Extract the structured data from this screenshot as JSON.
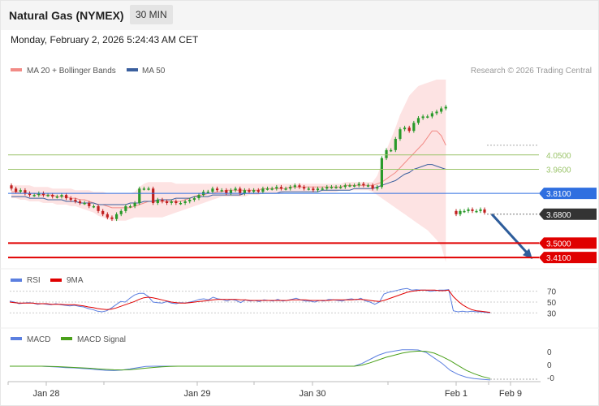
{
  "header": {
    "title": "Natural Gas (NYMEX)",
    "timeframe": "30 MIN"
  },
  "timestamp": "Monday, February 2, 2026 5:24:43 AM CET",
  "legend": {
    "ma20": "MA 20 + Bollinger Bands",
    "ma50": "MA 50",
    "credit": "Research © 2026 Trading Central"
  },
  "colors": {
    "ma20": "#f28b86",
    "ma50": "#3a5f9e",
    "resistance": "#9bc46a",
    "pivot": "#2f6fe0",
    "support": "#e00000",
    "arrow": "#2e5d9b",
    "bull": "#2a9a2a",
    "bear": "#c02020",
    "rsi": "#5b7fe0",
    "signal": "#e00000",
    "macd_signal": "#4aa01a"
  },
  "chart_data": [
    {
      "type": "candlestick",
      "panel": "price",
      "x_tick_labels": [
        "Jan 28",
        "Jan 29",
        "Jan 30",
        "Feb 1",
        "Feb 9"
      ],
      "levels": [
        {
          "label": "4.0500",
          "value": 4.05,
          "kind": "resistance"
        },
        {
          "label": "3.9600",
          "value": 3.96,
          "kind": "resistance"
        },
        {
          "label": "3.8100",
          "value": 3.81,
          "kind": "pivot"
        },
        {
          "label": "3.6800",
          "value": 3.68,
          "kind": "last"
        },
        {
          "label": "3.5000",
          "value": 3.5,
          "kind": "support"
        },
        {
          "label": "3.4100",
          "value": 3.41,
          "kind": "support"
        }
      ],
      "ylim": [
        3.37,
        4.52
      ],
      "close": [
        3.84,
        3.82,
        3.83,
        3.81,
        3.8,
        3.8,
        3.81,
        3.8,
        3.8,
        3.79,
        3.79,
        3.8,
        3.78,
        3.77,
        3.76,
        3.75,
        3.75,
        3.73,
        3.73,
        3.7,
        3.68,
        3.66,
        3.65,
        3.68,
        3.7,
        3.73,
        3.73,
        3.75,
        3.84,
        3.84,
        3.84,
        3.75,
        3.77,
        3.76,
        3.75,
        3.76,
        3.75,
        3.75,
        3.76,
        3.77,
        3.78,
        3.8,
        3.82,
        3.82,
        3.84,
        3.83,
        3.83,
        3.81,
        3.83,
        3.84,
        3.81,
        3.83,
        3.82,
        3.83,
        3.82,
        3.84,
        3.84,
        3.84,
        3.85,
        3.84,
        3.84,
        3.85,
        3.86,
        3.85,
        3.84,
        3.84,
        3.83,
        3.84,
        3.84,
        3.85,
        3.85,
        3.85,
        3.85,
        3.86,
        3.86,
        3.86,
        3.87,
        3.86,
        3.86,
        3.84,
        3.85,
        4.03,
        4.08,
        4.08,
        4.15,
        4.21,
        4.22,
        4.2,
        4.25,
        4.28,
        4.29,
        4.29,
        4.31,
        4.32,
        4.34,
        4.35
      ],
      "ma20": [
        3.82,
        3.82,
        3.81,
        3.81,
        3.81,
        3.81,
        3.8,
        3.8,
        3.8,
        3.8,
        3.79,
        3.79,
        3.79,
        3.78,
        3.78,
        3.77,
        3.77,
        3.76,
        3.75,
        3.74,
        3.74,
        3.73,
        3.72,
        3.72,
        3.72,
        3.72,
        3.72,
        3.73,
        3.74,
        3.75,
        3.76,
        3.76,
        3.76,
        3.76,
        3.76,
        3.76,
        3.76,
        3.76,
        3.77,
        3.78,
        3.79,
        3.8,
        3.8,
        3.81,
        3.81,
        3.82,
        3.82,
        3.83,
        3.83,
        3.83,
        3.83,
        3.83,
        3.83,
        3.83,
        3.83,
        3.84,
        3.84,
        3.84,
        3.84,
        3.84,
        3.84,
        3.85,
        3.85,
        3.85,
        3.85,
        3.85,
        3.85,
        3.85,
        3.85,
        3.85,
        3.85,
        3.85,
        3.85,
        3.86,
        3.86,
        3.86,
        3.86,
        3.86,
        3.86,
        3.86,
        3.87,
        3.88,
        3.9,
        3.92,
        3.94,
        3.97,
        4.0,
        4.03,
        4.06,
        4.09,
        4.12,
        4.16,
        4.2,
        4.2,
        4.17,
        4.11
      ],
      "bb_upper": [
        3.86,
        3.86,
        3.86,
        3.86,
        3.86,
        3.85,
        3.85,
        3.85,
        3.85,
        3.84,
        3.84,
        3.84,
        3.84,
        3.84,
        3.83,
        3.83,
        3.83,
        3.83,
        3.82,
        3.82,
        3.82,
        3.81,
        3.81,
        3.81,
        3.81,
        3.81,
        3.81,
        3.82,
        3.85,
        3.87,
        3.88,
        3.88,
        3.88,
        3.88,
        3.88,
        3.88,
        3.87,
        3.87,
        3.87,
        3.87,
        3.87,
        3.87,
        3.87,
        3.87,
        3.87,
        3.87,
        3.87,
        3.87,
        3.87,
        3.87,
        3.87,
        3.87,
        3.87,
        3.87,
        3.87,
        3.87,
        3.87,
        3.87,
        3.87,
        3.87,
        3.87,
        3.87,
        3.87,
        3.87,
        3.87,
        3.87,
        3.87,
        3.87,
        3.87,
        3.87,
        3.87,
        3.87,
        3.87,
        3.88,
        3.88,
        3.88,
        3.88,
        3.88,
        3.88,
        3.88,
        3.92,
        4.0,
        4.08,
        4.15,
        4.22,
        4.3,
        4.36,
        4.42,
        4.45,
        4.48,
        4.49,
        4.5,
        4.51,
        4.52,
        4.52,
        4.52
      ],
      "bb_lower": [
        3.78,
        3.78,
        3.77,
        3.77,
        3.76,
        3.76,
        3.76,
        3.75,
        3.75,
        3.75,
        3.74,
        3.74,
        3.74,
        3.73,
        3.73,
        3.72,
        3.71,
        3.7,
        3.69,
        3.67,
        3.66,
        3.65,
        3.64,
        3.64,
        3.64,
        3.64,
        3.65,
        3.66,
        3.66,
        3.66,
        3.66,
        3.66,
        3.66,
        3.66,
        3.67,
        3.68,
        3.69,
        3.7,
        3.71,
        3.72,
        3.73,
        3.74,
        3.75,
        3.76,
        3.77,
        3.78,
        3.79,
        3.79,
        3.79,
        3.79,
        3.79,
        3.79,
        3.8,
        3.8,
        3.8,
        3.81,
        3.81,
        3.81,
        3.81,
        3.81,
        3.82,
        3.82,
        3.82,
        3.82,
        3.82,
        3.82,
        3.82,
        3.82,
        3.82,
        3.82,
        3.82,
        3.82,
        3.83,
        3.83,
        3.83,
        3.83,
        3.83,
        3.83,
        3.83,
        3.82,
        3.8,
        3.78,
        3.76,
        3.74,
        3.72,
        3.7,
        3.68,
        3.66,
        3.64,
        3.62,
        3.6,
        3.58,
        3.55,
        3.52,
        3.48,
        3.38
      ],
      "ma50": [
        3.79,
        3.79,
        3.79,
        3.79,
        3.78,
        3.78,
        3.78,
        3.78,
        3.77,
        3.77,
        3.77,
        3.77,
        3.76,
        3.76,
        3.76,
        3.75,
        3.75,
        3.75,
        3.75,
        3.74,
        3.74,
        3.74,
        3.74,
        3.74,
        3.74,
        3.74,
        3.75,
        3.75,
        3.75,
        3.76,
        3.76,
        3.76,
        3.77,
        3.77,
        3.77,
        3.77,
        3.78,
        3.78,
        3.78,
        3.78,
        3.79,
        3.79,
        3.79,
        3.79,
        3.8,
        3.8,
        3.8,
        3.8,
        3.8,
        3.8,
        3.8,
        3.81,
        3.81,
        3.81,
        3.81,
        3.81,
        3.81,
        3.81,
        3.81,
        3.82,
        3.82,
        3.82,
        3.82,
        3.82,
        3.82,
        3.82,
        3.82,
        3.82,
        3.83,
        3.83,
        3.83,
        3.83,
        3.83,
        3.83,
        3.83,
        3.84,
        3.84,
        3.84,
        3.84,
        3.84,
        3.85,
        3.86,
        3.87,
        3.88,
        3.89,
        3.91,
        3.93,
        3.94,
        3.96,
        3.97,
        3.98,
        3.99,
        3.99,
        3.98,
        3.97,
        3.96
      ],
      "gap_candles": [
        3.68,
        3.7,
        3.7,
        3.71,
        3.7,
        3.7,
        3.71,
        3.69
      ],
      "forecast": {
        "from": 3.68,
        "to": 3.4,
        "direction": "down"
      }
    },
    {
      "type": "line",
      "panel": "rsi",
      "legend": [
        "RSI",
        "9MA"
      ],
      "y_tick_labels": [
        "70",
        "50",
        "30"
      ],
      "ylim": [
        20,
        80
      ],
      "rsi": [
        52,
        50,
        47,
        48,
        49,
        48,
        46,
        47,
        46,
        45,
        47,
        45,
        44,
        43,
        44,
        42,
        41,
        38,
        36,
        33,
        32,
        34,
        39,
        45,
        51,
        50,
        57,
        63,
        66,
        66,
        60,
        50,
        49,
        48,
        51,
        48,
        47,
        49,
        48,
        50,
        52,
        55,
        56,
        54,
        59,
        56,
        55,
        52,
        55,
        53,
        49,
        54,
        52,
        53,
        51,
        54,
        53,
        52,
        55,
        52,
        53,
        55,
        57,
        54,
        52,
        52,
        50,
        53,
        52,
        55,
        54,
        53,
        52,
        55,
        56,
        54,
        57,
        52,
        50,
        46,
        50,
        65,
        68,
        70,
        72,
        74,
        75,
        72,
        73,
        72,
        72,
        70,
        71,
        72,
        72,
        73,
        34,
        32,
        33,
        32,
        33,
        32,
        32,
        31,
        30
      ],
      "rsi_ma": [
        50,
        49,
        48,
        48,
        48,
        48,
        47,
        47,
        47,
        46,
        46,
        46,
        45,
        45,
        45,
        44,
        43,
        41,
        40,
        38,
        37,
        36,
        37,
        39,
        42,
        45,
        48,
        51,
        55,
        58,
        59,
        58,
        56,
        54,
        52,
        50,
        49,
        48,
        48,
        49,
        50,
        51,
        52,
        53,
        54,
        55,
        55,
        55,
        55,
        55,
        54,
        54,
        53,
        53,
        53,
        53,
        53,
        53,
        53,
        53,
        53,
        54,
        54,
        54,
        54,
        53,
        53,
        53,
        53,
        53,
        54,
        54,
        54,
        54,
        54,
        55,
        55,
        54,
        53,
        52,
        51,
        53,
        56,
        59,
        62,
        65,
        68,
        70,
        71,
        72,
        72,
        72,
        72,
        71,
        71,
        72,
        60,
        52,
        45,
        40,
        36,
        34,
        33,
        32,
        31
      ]
    },
    {
      "type": "line",
      "panel": "macd",
      "legend": [
        "MACD",
        "MACD Signal"
      ],
      "y_tick_labels": [
        "0",
        "0",
        "-0"
      ],
      "ylim": [
        -0.11,
        0.15
      ],
      "macd": [
        0.0,
        0.0,
        0.0,
        0.0,
        0.0,
        -0.003,
        -0.006,
        -0.01,
        -0.012,
        -0.016,
        -0.02,
        -0.026,
        -0.03,
        -0.032,
        -0.028,
        -0.02,
        -0.01,
        -0.002,
        0.0,
        0.0,
        0.0,
        0.0,
        0.0,
        0.0,
        0.0,
        0.0,
        0.0,
        0.0,
        0.0,
        0.0,
        0.0,
        0.0,
        0.0,
        0.0,
        0.0,
        0.0,
        0.0,
        0.0,
        0.0,
        0.0,
        0.0,
        0.0,
        0.0,
        0.0,
        0.02,
        0.05,
        0.08,
        0.1,
        0.11,
        0.12,
        0.12,
        0.118,
        0.1,
        0.06,
        0.02,
        -0.03,
        -0.06,
        -0.08,
        -0.09,
        -0.095,
        -0.1
      ],
      "macd_signal": [
        0.0,
        0.0,
        0.0,
        0.0,
        0.0,
        -0.001,
        -0.003,
        -0.006,
        -0.009,
        -0.012,
        -0.015,
        -0.019,
        -0.023,
        -0.026,
        -0.027,
        -0.025,
        -0.02,
        -0.014,
        -0.009,
        -0.005,
        -0.002,
        0.0,
        0.0,
        0.0,
        0.0,
        0.0,
        0.0,
        0.0,
        0.0,
        0.0,
        0.0,
        0.0,
        0.0,
        0.0,
        0.0,
        0.0,
        0.0,
        0.0,
        0.0,
        0.0,
        0.0,
        0.0,
        0.0,
        0.0,
        0.008,
        0.025,
        0.045,
        0.065,
        0.08,
        0.095,
        0.105,
        0.11,
        0.108,
        0.095,
        0.07,
        0.04,
        0.005,
        -0.03,
        -0.055,
        -0.075,
        -0.09
      ]
    }
  ]
}
